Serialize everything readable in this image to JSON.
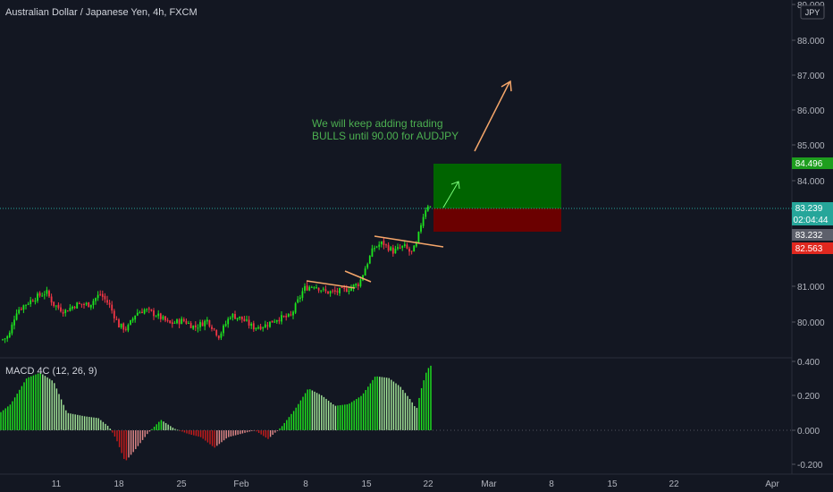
{
  "header": {
    "title": "Australian Dollar / Japanese Yen, 4h, FXCM"
  },
  "currency_badge": "JPY",
  "annotation": {
    "line1": "We will keep adding trading",
    "line2": "BULLS until 90.00 for AUDJPY"
  },
  "price_axis": {
    "ticks": [
      "89.000",
      "88.000",
      "87.000",
      "86.000",
      "85.000",
      "84.000",
      "81.000",
      "80.000"
    ]
  },
  "price_labels": {
    "target": "84.496",
    "last": "83.239",
    "countdown": "02:04:44",
    "prev": "83.232",
    "stop": "82.563"
  },
  "macd": {
    "label": "MACD 4C (12, 26, 9)",
    "ticks": [
      "0.400",
      "0.200",
      "0.000",
      "-0.200"
    ]
  },
  "time_axis": {
    "labels": [
      "11",
      "18",
      "25",
      "Feb",
      "8",
      "15",
      "22",
      "Mar",
      "8",
      "15",
      "22",
      "Apr"
    ]
  },
  "colors": {
    "background": "#131722",
    "bull": "#26a69a",
    "green": "#1ee51e",
    "red": "#f23645",
    "target_box": "#006400",
    "stop_box": "#6b0000",
    "arrow": "#f5a66a",
    "text": "#d1d4dc",
    "annotation": "#4caf50"
  },
  "chart_data": {
    "type": "candlestick",
    "title": "Australian Dollar / Japanese Yen, 4h, FXCM",
    "y_range": [
      79.2,
      89.2
    ],
    "x_range": [
      "Jan 6",
      "Apr 1"
    ],
    "ohlc_sample": [
      {
        "date": "Jan 6",
        "close": 79.6
      },
      {
        "date": "Jan 9",
        "close": 80.6
      },
      {
        "date": "Jan 11",
        "close": 80.5
      },
      {
        "date": "Jan 16",
        "close": 80.7
      },
      {
        "date": "Jan 18",
        "close": 80.1
      },
      {
        "date": "Jan 23",
        "close": 80.2
      },
      {
        "date": "Jan 28",
        "close": 80.1
      },
      {
        "date": "Feb 1",
        "close": 80.2
      },
      {
        "date": "Feb 4",
        "close": 80.1
      },
      {
        "date": "Feb 8",
        "close": 80.9
      },
      {
        "date": "Feb 11",
        "close": 81.0
      },
      {
        "date": "Feb 15",
        "close": 81.7
      },
      {
        "date": "Feb 18",
        "close": 82.2
      },
      {
        "date": "Feb 20",
        "close": 82.2
      },
      {
        "date": "Feb 22",
        "close": 83.239
      }
    ],
    "position": {
      "entry": 83.239,
      "target": 84.496,
      "stop": 82.563
    },
    "macd_range": [
      -0.25,
      0.42
    ],
    "macd_histogram_peaks": [
      {
        "date": "Jan 10",
        "value": 0.33
      },
      {
        "date": "Jan 18",
        "value": -0.18
      },
      {
        "date": "Feb 1",
        "value": -0.02
      },
      {
        "date": "Feb 9",
        "value": 0.24
      },
      {
        "date": "Feb 16",
        "value": 0.31
      },
      {
        "date": "Feb 22",
        "value": 0.38
      }
    ]
  }
}
